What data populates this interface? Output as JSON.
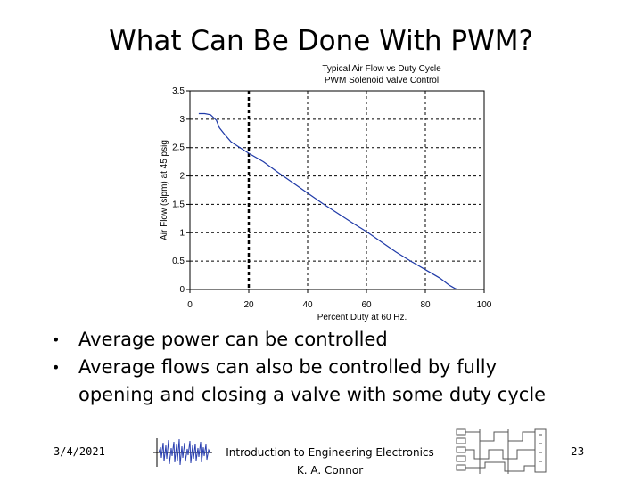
{
  "slide": {
    "title": "What Can Be Done With PWM?",
    "bullets": [
      "Average power can be controlled",
      "Average flows can also be controlled by fully opening and closing a valve with some duty cycle"
    ],
    "footer": {
      "date": "3/4/2021",
      "course": "Introduction to Engineering Electronics",
      "author": "K. A. Connor",
      "page": "23"
    }
  },
  "chart_data": {
    "type": "line",
    "title": "Typical Air Flow vs Duty Cycle",
    "subtitle": "PWM Solenoid Valve Control",
    "xlabel": "Percent Duty at 60 Hz.",
    "ylabel": "Air Flow (slpm) at 45 psig",
    "xlim": [
      0,
      100
    ],
    "ylim": [
      0,
      3.5
    ],
    "xticks": [
      0,
      20,
      40,
      60,
      80,
      100
    ],
    "yticks": [
      0,
      0.5,
      1,
      1.5,
      2,
      2.5,
      3,
      3.5
    ],
    "grid": true,
    "line_color": "#1f3aa8",
    "series": [
      {
        "x": [
          3,
          5,
          7,
          9,
          10,
          12,
          14,
          17,
          20,
          25,
          30,
          35,
          40,
          45,
          50,
          55,
          60,
          65,
          70,
          75,
          80,
          85,
          88,
          90,
          91
        ],
        "y": [
          3.1,
          3.1,
          3.08,
          2.98,
          2.85,
          2.72,
          2.6,
          2.5,
          2.4,
          2.25,
          2.06,
          1.88,
          1.7,
          1.52,
          1.35,
          1.18,
          1.02,
          0.84,
          0.66,
          0.5,
          0.35,
          0.2,
          0.08,
          0.02,
          0
        ]
      }
    ]
  }
}
